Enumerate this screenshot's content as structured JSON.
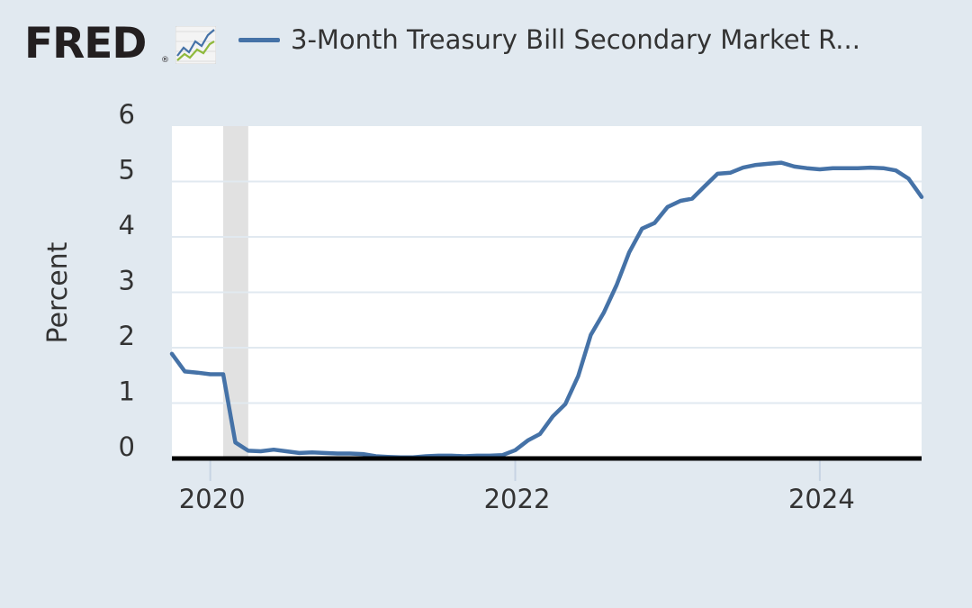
{
  "logo": {
    "text": "FRED",
    "reg": "®",
    "icon": "line-chart-icon"
  },
  "legend": {
    "label": "3-Month Treasury Bill Secondary Market R...",
    "color": "#4572a7"
  },
  "colors": {
    "background": "#e1e9f0",
    "plot_background": "#ffffff",
    "series": "#4572a7",
    "gridline": "#e1e9f0",
    "recession": "#e1e1e1",
    "axis": "#000000"
  },
  "chart_data": {
    "type": "line",
    "title": "",
    "xlabel": "",
    "ylabel": "Percent",
    "xlim": [
      "2019-10-01",
      "2024-09-01"
    ],
    "ylim": [
      0,
      6
    ],
    "yticks": [
      0,
      1,
      2,
      3,
      4,
      5,
      6
    ],
    "xticks": [
      "2020",
      "2022",
      "2024"
    ],
    "xtick_dates": [
      "2020-01-01",
      "2022-01-01",
      "2024-01-01"
    ],
    "grid": true,
    "recession_shading": [
      [
        "2020-02-01",
        "2020-04-01"
      ]
    ],
    "series": [
      {
        "name": "3-Month Treasury Bill Secondary Market R...",
        "x": [
          "2019-10-01",
          "2019-11-01",
          "2019-12-01",
          "2020-01-01",
          "2020-02-01",
          "2020-03-01",
          "2020-04-01",
          "2020-05-01",
          "2020-06-01",
          "2020-07-01",
          "2020-08-01",
          "2020-09-01",
          "2020-10-01",
          "2020-11-01",
          "2020-12-01",
          "2021-01-01",
          "2021-02-01",
          "2021-03-01",
          "2021-04-01",
          "2021-05-01",
          "2021-06-01",
          "2021-07-01",
          "2021-08-01",
          "2021-09-01",
          "2021-10-01",
          "2021-11-01",
          "2021-12-01",
          "2022-01-01",
          "2022-02-01",
          "2022-03-01",
          "2022-04-01",
          "2022-05-01",
          "2022-06-01",
          "2022-07-01",
          "2022-08-01",
          "2022-09-01",
          "2022-10-01",
          "2022-11-01",
          "2022-12-01",
          "2023-01-01",
          "2023-02-01",
          "2023-03-01",
          "2023-04-01",
          "2023-05-01",
          "2023-06-01",
          "2023-07-01",
          "2023-08-01",
          "2023-09-01",
          "2023-10-01",
          "2023-11-01",
          "2023-12-01",
          "2024-01-01",
          "2024-02-01",
          "2024-03-01",
          "2024-04-01",
          "2024-05-01",
          "2024-06-01",
          "2024-07-01",
          "2024-08-01",
          "2024-09-01"
        ],
        "values": [
          1.89,
          1.57,
          1.55,
          1.52,
          1.52,
          0.29,
          0.14,
          0.13,
          0.16,
          0.13,
          0.1,
          0.11,
          0.1,
          0.09,
          0.09,
          0.08,
          0.04,
          0.03,
          0.02,
          0.02,
          0.04,
          0.05,
          0.05,
          0.04,
          0.05,
          0.05,
          0.06,
          0.15,
          0.33,
          0.44,
          0.76,
          0.98,
          1.49,
          2.23,
          2.63,
          3.13,
          3.72,
          4.15,
          4.25,
          4.54,
          4.65,
          4.69,
          4.92,
          5.14,
          5.16,
          5.25,
          5.3,
          5.32,
          5.34,
          5.27,
          5.24,
          5.22,
          5.24,
          5.24,
          5.24,
          5.25,
          5.24,
          5.2,
          5.05,
          4.72
        ]
      }
    ]
  }
}
